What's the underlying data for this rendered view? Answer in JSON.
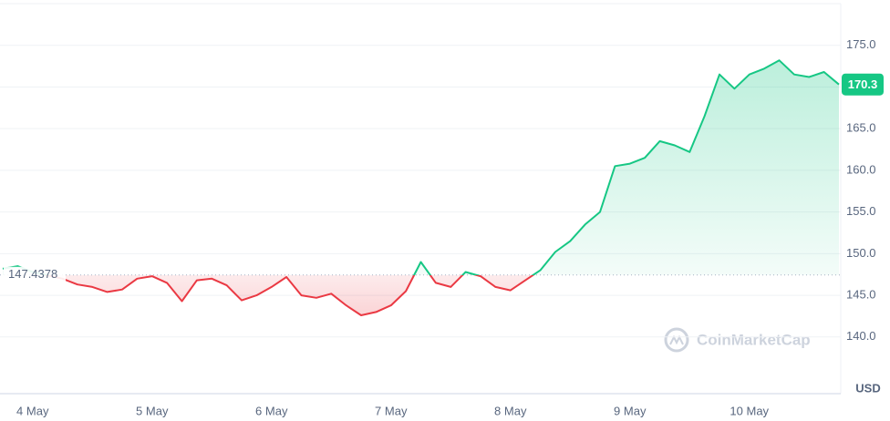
{
  "chart_data": {
    "type": "line",
    "categories": [
      null,
      null,
      "4 May",
      null,
      null,
      null,
      null,
      null,
      null,
      null,
      "5 May",
      null,
      null,
      null,
      null,
      null,
      null,
      null,
      "6 May",
      null,
      null,
      null,
      null,
      null,
      null,
      null,
      "7 May",
      null,
      null,
      null,
      null,
      null,
      null,
      null,
      "8 May",
      null,
      null,
      null,
      null,
      null,
      null,
      null,
      "9 May",
      null,
      null,
      null,
      null,
      null,
      null,
      null,
      "10 May",
      null,
      null,
      null,
      null,
      null,
      null
    ],
    "values": [
      148.2,
      148.5,
      147.8,
      147.4,
      147.0,
      146.3,
      146.0,
      145.4,
      145.7,
      147.0,
      147.3,
      146.5,
      144.3,
      146.8,
      147.0,
      146.2,
      144.4,
      145.0,
      146.0,
      147.2,
      145.0,
      144.7,
      145.2,
      143.8,
      142.6,
      143.0,
      143.8,
      145.5,
      149.0,
      146.5,
      146.0,
      147.8,
      147.3,
      146.0,
      145.6,
      146.8,
      148.0,
      150.2,
      151.5,
      153.5,
      155.0,
      160.5,
      160.8,
      161.5,
      163.5,
      163.0,
      162.2,
      166.5,
      171.5,
      169.8,
      171.5,
      172.2,
      173.2,
      171.5,
      171.2,
      171.8,
      170.3
    ],
    "reference_price": 147.4378,
    "up_color": "#16c784",
    "down_color": "#ea3943",
    "ylim": [
      133.2,
      180
    ],
    "yticks": [
      {
        "value": 140,
        "label": "140.0"
      },
      {
        "value": 145,
        "label": "145.0"
      },
      {
        "value": 150,
        "label": "150.0"
      },
      {
        "value": 155,
        "label": "155.0"
      },
      {
        "value": 160,
        "label": "160.0"
      },
      {
        "value": 165,
        "label": "165.0"
      },
      {
        "value": 170,
        "label": "170.0"
      },
      {
        "value": 175,
        "label": "175.0"
      }
    ],
    "grid": true,
    "y_axis_label": "USD",
    "watermark": "CoinMarketCap"
  }
}
